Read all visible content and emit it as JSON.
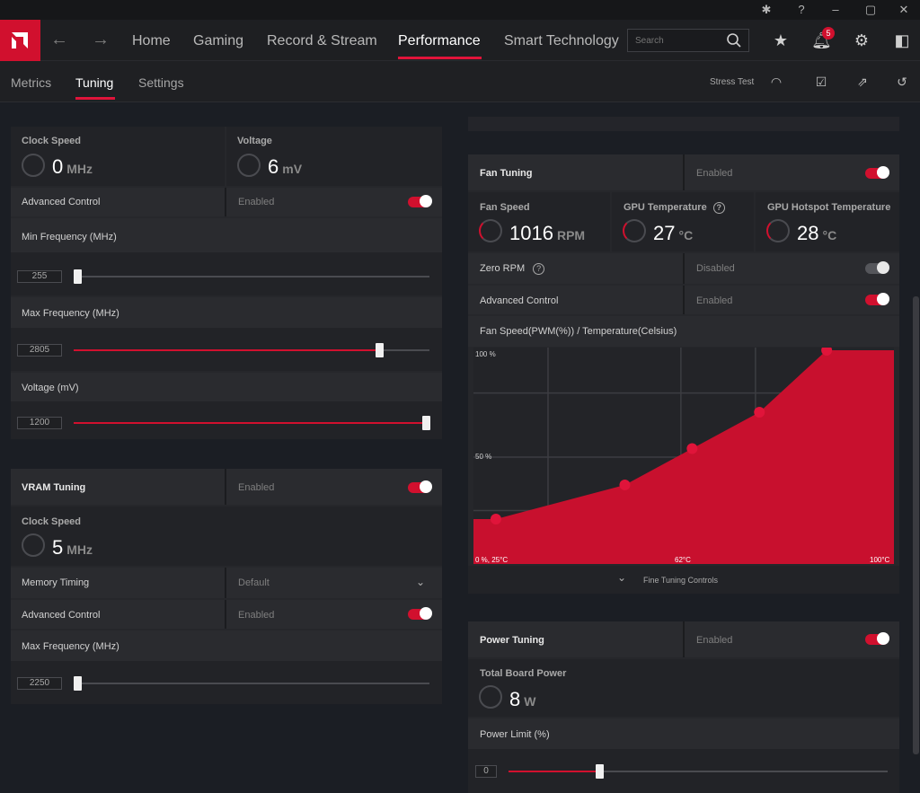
{
  "nav": {
    "tabs": [
      "Home",
      "Gaming",
      "Record & Stream",
      "Performance",
      "Smart Technology"
    ],
    "active_tab": "Performance",
    "search_placeholder": "Search",
    "notification_count": "5"
  },
  "subnav": {
    "tabs": [
      "Metrics",
      "Tuning",
      "Settings"
    ],
    "active_tab": "Tuning",
    "stress_test": "Stress Test"
  },
  "gpu": {
    "clock_label": "Clock Speed",
    "clock_value": "0",
    "clock_unit": "MHz",
    "voltage_label": "Voltage",
    "voltage_value": "6",
    "voltage_unit": "mV",
    "advanced_label": "Advanced Control",
    "advanced_state": "Enabled",
    "min_freq_label": "Min Frequency (MHz)",
    "min_freq_value": "255",
    "max_freq_label": "Max Frequency (MHz)",
    "max_freq_value": "2805",
    "voltage_mv_label": "Voltage (mV)",
    "voltage_mv_value": "1200"
  },
  "vram": {
    "title": "VRAM Tuning",
    "state": "Enabled",
    "clock_label": "Clock Speed",
    "clock_value": "5",
    "clock_unit": "MHz",
    "timing_label": "Memory Timing",
    "timing_value": "Default",
    "advanced_label": "Advanced Control",
    "advanced_state": "Enabled",
    "max_freq_label": "Max Frequency (MHz)",
    "max_freq_value": "2250"
  },
  "fan": {
    "title": "Fan Tuning",
    "state": "Enabled",
    "speed_label": "Fan Speed",
    "speed_value": "1016",
    "speed_unit": "RPM",
    "gpu_temp_label": "GPU Temperature",
    "gpu_temp_value": "27",
    "gpu_temp_unit": "°C",
    "hotspot_label": "GPU Hotspot Temperature",
    "hotspot_value": "28",
    "hotspot_unit": "°C",
    "zero_rpm_label": "Zero RPM",
    "zero_rpm_state": "Disabled",
    "advanced_label": "Advanced Control",
    "advanced_state": "Enabled",
    "curve_title": "Fan Speed(PWM(%)) / Temperature(Celsius)",
    "fine_tuning": "Fine Tuning Controls"
  },
  "chart_data": {
    "type": "area",
    "title": "Fan Speed(PWM(%)) / Temperature(Celsius)",
    "x_tick_labels": [
      "0 %, 25°C",
      "62°C",
      "100°C"
    ],
    "y_tick_labels": [
      "100 %",
      "50 %"
    ],
    "xlim": [
      25,
      100
    ],
    "ylim": [
      0,
      100
    ],
    "x": [
      29,
      52,
      64,
      76,
      88
    ],
    "values": [
      21,
      37,
      54,
      71,
      100
    ],
    "color": "#c8102e"
  },
  "power": {
    "title": "Power Tuning",
    "state": "Enabled",
    "board_label": "Total Board Power",
    "board_value": "8",
    "board_unit": "W",
    "limit_label": "Power Limit (%)",
    "limit_value": "0"
  },
  "colors": {
    "accent": "#d1102e"
  }
}
